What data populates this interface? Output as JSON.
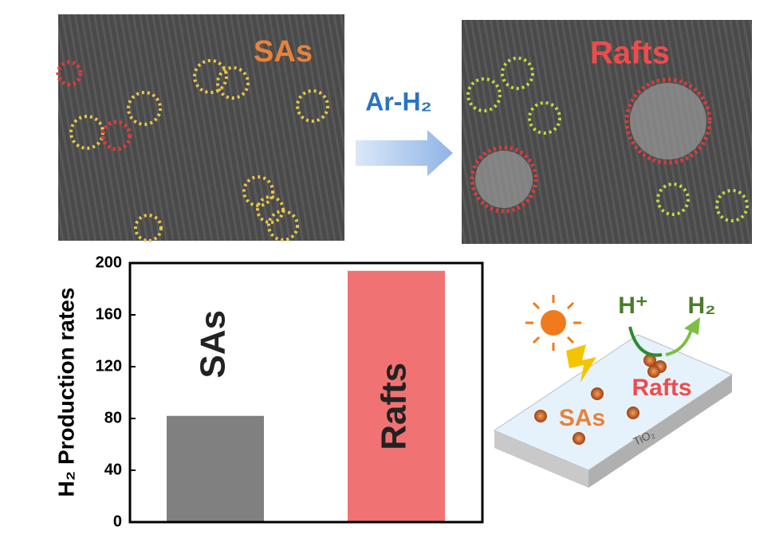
{
  "chart_data": {
    "type": "bar",
    "ylabel": "H₂ Production rates",
    "categories": [
      "SAs",
      "Rafts"
    ],
    "values": [
      82,
      194
    ],
    "colors": [
      "#808080",
      "#f07272"
    ],
    "ylim": [
      0,
      200
    ],
    "yticks": [
      0,
      40,
      80,
      120,
      160,
      200
    ]
  },
  "panels": {
    "left_label": "SAs",
    "right_label": "Rafts",
    "arrow_label": "Ar-H₂",
    "scheme": {
      "proton": "H⁺",
      "hydrogen": "H₂",
      "rafts": "Rafts",
      "sas": "SAs",
      "support": "TiO₂"
    }
  }
}
